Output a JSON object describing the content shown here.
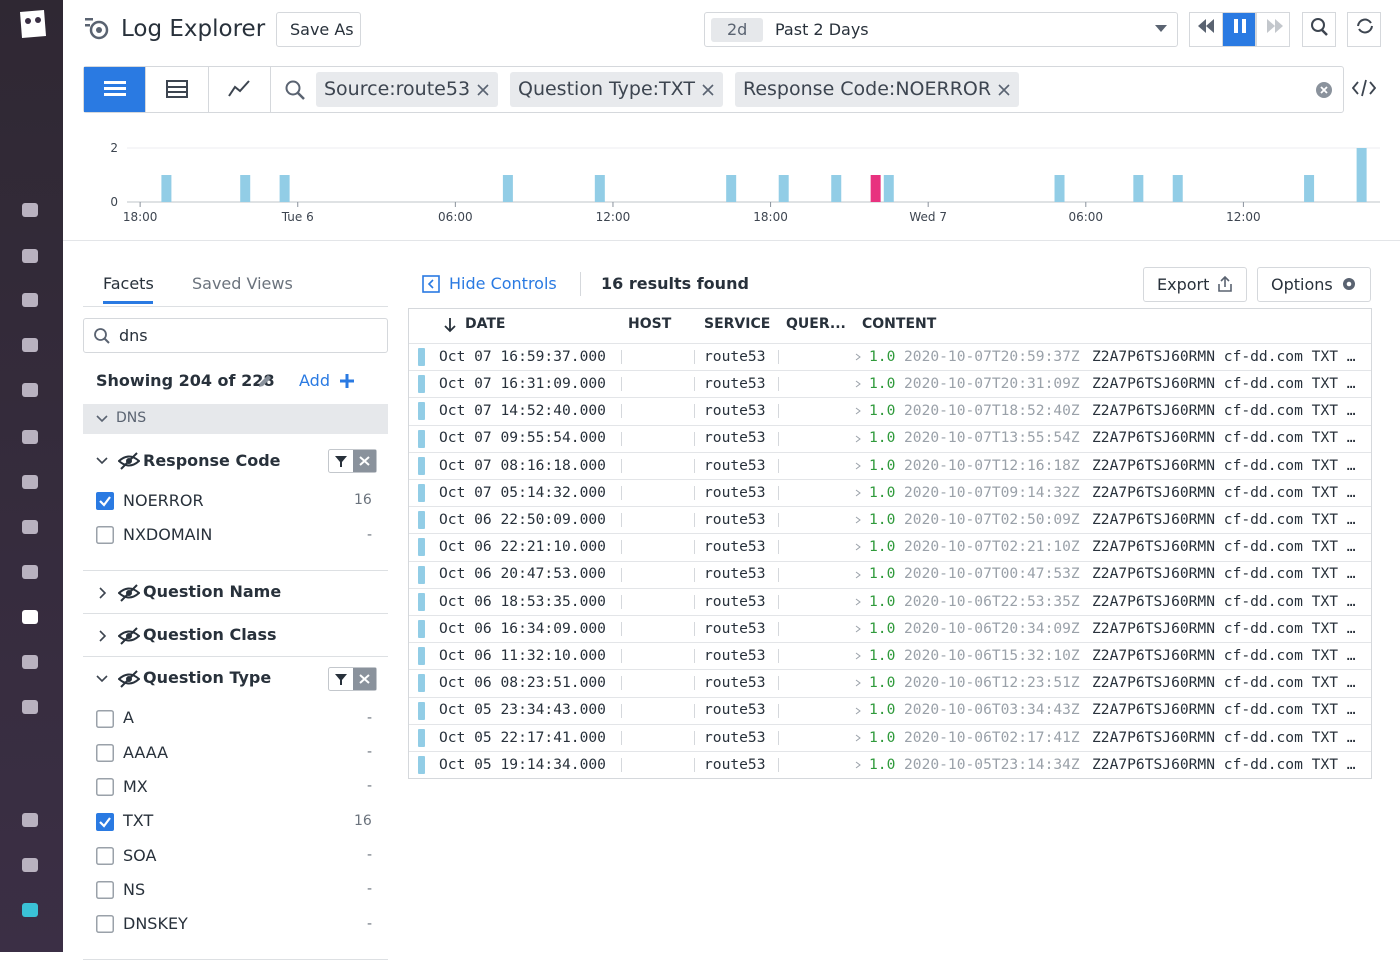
{
  "header": {
    "title": "Log Explorer",
    "save_as": "Save As",
    "time_badge": "2d",
    "time_range": "Past 2 Days"
  },
  "search": {
    "tags": [
      "Source:route53",
      "Question Type:TXT",
      "Response Code:NOERROR"
    ]
  },
  "chart_data": {
    "type": "bar",
    "x": [
      1,
      4,
      5.5,
      14,
      17.5,
      22.5,
      24.5,
      26.5,
      28,
      28.5,
      35,
      38,
      39.5,
      44.5,
      46.5
    ],
    "values": [
      1,
      1,
      1,
      1,
      1,
      1,
      1,
      1,
      1,
      1,
      1,
      1,
      1,
      1,
      2
    ],
    "colors": [
      "#92cde6",
      "#92cde6",
      "#92cde6",
      "#92cde6",
      "#92cde6",
      "#92cde6",
      "#92cde6",
      "#92cde6",
      "#e8327f",
      "#92cde6",
      "#92cde6",
      "#92cde6",
      "#92cde6",
      "#92cde6",
      "#92cde6"
    ],
    "xlim": [
      -0.5,
      47.2
    ],
    "ylim": [
      0,
      2
    ],
    "yticks": [
      0,
      2
    ],
    "xticks": [
      {
        "value": 0,
        "label": "18:00"
      },
      {
        "value": 6,
        "label": "Tue 6"
      },
      {
        "value": 12,
        "label": "06:00"
      },
      {
        "value": 18,
        "label": "12:00"
      },
      {
        "value": 24,
        "label": "18:00"
      },
      {
        "value": 30,
        "label": "Wed 7"
      },
      {
        "value": 36,
        "label": "06:00"
      },
      {
        "value": 42,
        "label": "12:00"
      }
    ],
    "grid": true
  },
  "facets": {
    "tabs": [
      "Facets",
      "Saved Views"
    ],
    "search": "dns",
    "showing": "Showing 204 of 228",
    "add": "Add",
    "group": "DNS",
    "items": [
      {
        "title": "Response Code",
        "expanded": true,
        "options": [
          {
            "label": "NOERROR",
            "count": 16,
            "checked": true
          },
          {
            "label": "NXDOMAIN",
            "count": "-",
            "checked": false
          }
        ]
      },
      {
        "title": "Question Name",
        "expanded": false
      },
      {
        "title": "Question Class",
        "expanded": false
      },
      {
        "title": "Question Type",
        "expanded": true,
        "options": [
          {
            "label": "A",
            "count": "-",
            "checked": false
          },
          {
            "label": "AAAA",
            "count": "-",
            "checked": false
          },
          {
            "label": "MX",
            "count": "-",
            "checked": false
          },
          {
            "label": "TXT",
            "count": 16,
            "checked": true
          },
          {
            "label": "SOA",
            "count": "-",
            "checked": false
          },
          {
            "label": "NS",
            "count": "-",
            "checked": false
          },
          {
            "label": "DNSKEY",
            "count": "-",
            "checked": false
          }
        ]
      }
    ]
  },
  "results": {
    "hide_controls": "Hide Controls",
    "count": "16 results found",
    "export": "Export",
    "options": "Options",
    "columns": [
      "DATE",
      "HOST",
      "SERVICE",
      "QUER...",
      "CONTENT"
    ],
    "rows": [
      {
        "date": "Oct 07 16:59:37.000",
        "service": "route53",
        "version": "1.0",
        "timestamp": "2020-10-07T20:59:37Z",
        "content": "Z2A7P6TSJ60RMN cf-dd.com TXT …"
      },
      {
        "date": "Oct 07 16:31:09.000",
        "service": "route53",
        "version": "1.0",
        "timestamp": "2020-10-07T20:31:09Z",
        "content": "Z2A7P6TSJ60RMN cf-dd.com TXT …"
      },
      {
        "date": "Oct 07 14:52:40.000",
        "service": "route53",
        "version": "1.0",
        "timestamp": "2020-10-07T18:52:40Z",
        "content": "Z2A7P6TSJ60RMN cf-dd.com TXT …"
      },
      {
        "date": "Oct 07 09:55:54.000",
        "service": "route53",
        "version": "1.0",
        "timestamp": "2020-10-07T13:55:54Z",
        "content": "Z2A7P6TSJ60RMN cf-dd.com TXT …"
      },
      {
        "date": "Oct 07 08:16:18.000",
        "service": "route53",
        "version": "1.0",
        "timestamp": "2020-10-07T12:16:18Z",
        "content": "Z2A7P6TSJ60RMN cf-dd.com TXT …"
      },
      {
        "date": "Oct 07 05:14:32.000",
        "service": "route53",
        "version": "1.0",
        "timestamp": "2020-10-07T09:14:32Z",
        "content": "Z2A7P6TSJ60RMN cf-dd.com TXT …"
      },
      {
        "date": "Oct 06 22:50:09.000",
        "service": "route53",
        "version": "1.0",
        "timestamp": "2020-10-07T02:50:09Z",
        "content": "Z2A7P6TSJ60RMN cf-dd.com TXT …"
      },
      {
        "date": "Oct 06 22:21:10.000",
        "service": "route53",
        "version": "1.0",
        "timestamp": "2020-10-07T02:21:10Z",
        "content": "Z2A7P6TSJ60RMN cf-dd.com TXT …"
      },
      {
        "date": "Oct 06 20:47:53.000",
        "service": "route53",
        "version": "1.0",
        "timestamp": "2020-10-07T00:47:53Z",
        "content": "Z2A7P6TSJ60RMN cf-dd.com TXT …"
      },
      {
        "date": "Oct 06 18:53:35.000",
        "service": "route53",
        "version": "1.0",
        "timestamp": "2020-10-06T22:53:35Z",
        "content": "Z2A7P6TSJ60RMN cf-dd.com TXT …"
      },
      {
        "date": "Oct 06 16:34:09.000",
        "service": "route53",
        "version": "1.0",
        "timestamp": "2020-10-06T20:34:09Z",
        "content": "Z2A7P6TSJ60RMN cf-dd.com TXT …"
      },
      {
        "date": "Oct 06 11:32:10.000",
        "service": "route53",
        "version": "1.0",
        "timestamp": "2020-10-06T15:32:10Z",
        "content": "Z2A7P6TSJ60RMN cf-dd.com TXT …"
      },
      {
        "date": "Oct 06 08:23:51.000",
        "service": "route53",
        "version": "1.0",
        "timestamp": "2020-10-06T12:23:51Z",
        "content": "Z2A7P6TSJ60RMN cf-dd.com TXT …"
      },
      {
        "date": "Oct 05 23:34:43.000",
        "service": "route53",
        "version": "1.0",
        "timestamp": "2020-10-06T03:34:43Z",
        "content": "Z2A7P6TSJ60RMN cf-dd.com TXT …"
      },
      {
        "date": "Oct 05 22:17:41.000",
        "service": "route53",
        "version": "1.0",
        "timestamp": "2020-10-06T02:17:41Z",
        "content": "Z2A7P6TSJ60RMN cf-dd.com TXT …"
      },
      {
        "date": "Oct 05 19:14:34.000",
        "service": "route53",
        "version": "1.0",
        "timestamp": "2020-10-05T23:14:34Z",
        "content": "Z2A7P6TSJ60RMN cf-dd.com TXT …"
      }
    ]
  }
}
